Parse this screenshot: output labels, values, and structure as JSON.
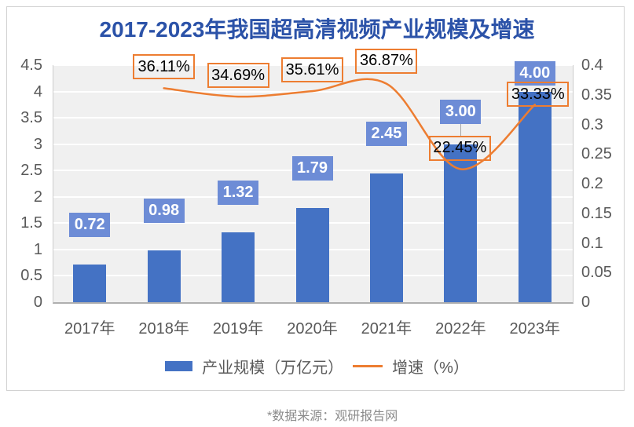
{
  "page": {
    "source_note": "*数据来源：观研报告网"
  },
  "chart_data": {
    "type": "bar+line",
    "title": "2017-2023年我国超高清视频产业规模及增速",
    "categories": [
      "2017年",
      "2018年",
      "2019年",
      "2020年",
      "2021年",
      "2022年",
      "2023年"
    ],
    "series": [
      {
        "name": "产业规模（万亿元）",
        "type": "bar",
        "axis": "left",
        "values": [
          0.72,
          0.98,
          1.32,
          1.79,
          2.45,
          3.0,
          4.0
        ],
        "labels": [
          "0.72",
          "0.98",
          "1.32",
          "1.79",
          "2.45",
          "3.00",
          "4.00"
        ]
      },
      {
        "name": "增速（%）",
        "type": "line",
        "axis": "right",
        "values": [
          null,
          0.3611,
          0.3469,
          0.3561,
          0.3687,
          0.2245,
          0.3333
        ],
        "labels": [
          "36.11%",
          "34.69%",
          "35.61%",
          "36.87%",
          "22.45%",
          "33.33%"
        ]
      }
    ],
    "left_axis": {
      "min": 0,
      "max": 4.5,
      "ticks": [
        "0",
        "0.5",
        "1",
        "1.5",
        "2",
        "2.5",
        "3",
        "3.5",
        "4",
        "4.5"
      ]
    },
    "right_axis": {
      "min": 0,
      "max": 0.4,
      "ticks": [
        "0",
        "0.05",
        "0.1",
        "0.15",
        "0.2",
        "0.25",
        "0.3",
        "0.35",
        "0.4"
      ]
    },
    "grid": true,
    "legend_position": "bottom",
    "colors": {
      "bar": "#4472C4",
      "bar_label_bg": "#6D8CD6",
      "line": "#ED7D31",
      "title": "#2B52A8",
      "axis_text": "#595959",
      "plot_bg": "#F0F0F0",
      "gridline": "#FFFFFF",
      "source_text": "#8C8C8C"
    }
  }
}
